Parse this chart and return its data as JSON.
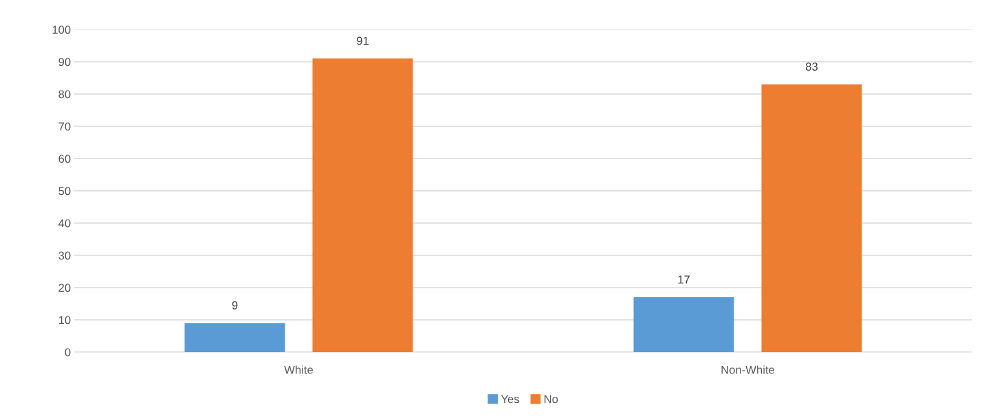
{
  "chart_data": {
    "type": "bar",
    "categories": [
      "White",
      "Non-White"
    ],
    "series": [
      {
        "name": "Yes",
        "color": "#5b9bd5",
        "values": [
          9,
          17
        ]
      },
      {
        "name": "No",
        "color": "#ed7d31",
        "values": [
          91,
          83
        ]
      }
    ],
    "ylim": [
      0,
      100
    ],
    "yticks": [
      0,
      10,
      20,
      30,
      40,
      50,
      60,
      70,
      80,
      90,
      100
    ],
    "grid": "y",
    "legend": "bottom",
    "data_labels": true
  }
}
